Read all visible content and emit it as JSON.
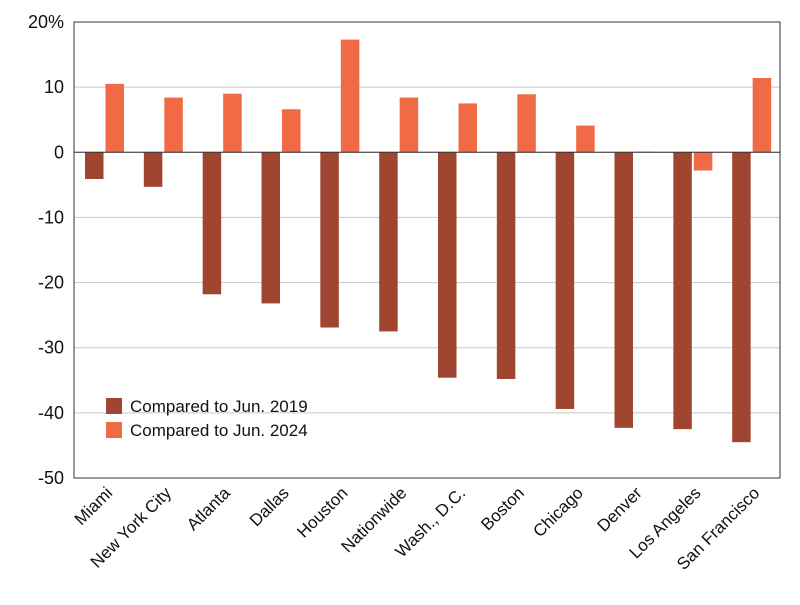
{
  "chart_data": {
    "type": "bar",
    "title": "",
    "xlabel": "",
    "ylabel": "",
    "y_unit_suffix": "%",
    "ylim": [
      -50,
      20
    ],
    "yticks": [
      20,
      10,
      0,
      -10,
      -20,
      -30,
      -40,
      -50
    ],
    "ytick_labels": [
      "20%",
      "10",
      "0",
      "-10",
      "-20",
      "-30",
      "-40",
      "-50"
    ],
    "grid": true,
    "legend_position": "lower-left",
    "categories": [
      "Miami",
      "New York City",
      "Atlanta",
      "Dallas",
      "Houston",
      "Nationwide",
      "Wash., D.C.",
      "Boston",
      "Chicago",
      "Denver",
      "Los Angeles",
      "San Francisco"
    ],
    "series": [
      {
        "name": "Compared to Jun. 2019",
        "color": "#A04530",
        "values": [
          -4.1,
          -5.3,
          -21.8,
          -23.2,
          -26.9,
          -27.5,
          -34.6,
          -34.8,
          -39.4,
          -42.3,
          -42.5,
          -44.5
        ]
      },
      {
        "name": "Compared to Jun. 2024",
        "color": "#EF6A45",
        "values": [
          10.5,
          8.4,
          9.0,
          6.6,
          17.3,
          8.4,
          7.5,
          8.9,
          4.1,
          0.1,
          -2.8,
          11.4
        ]
      }
    ]
  }
}
